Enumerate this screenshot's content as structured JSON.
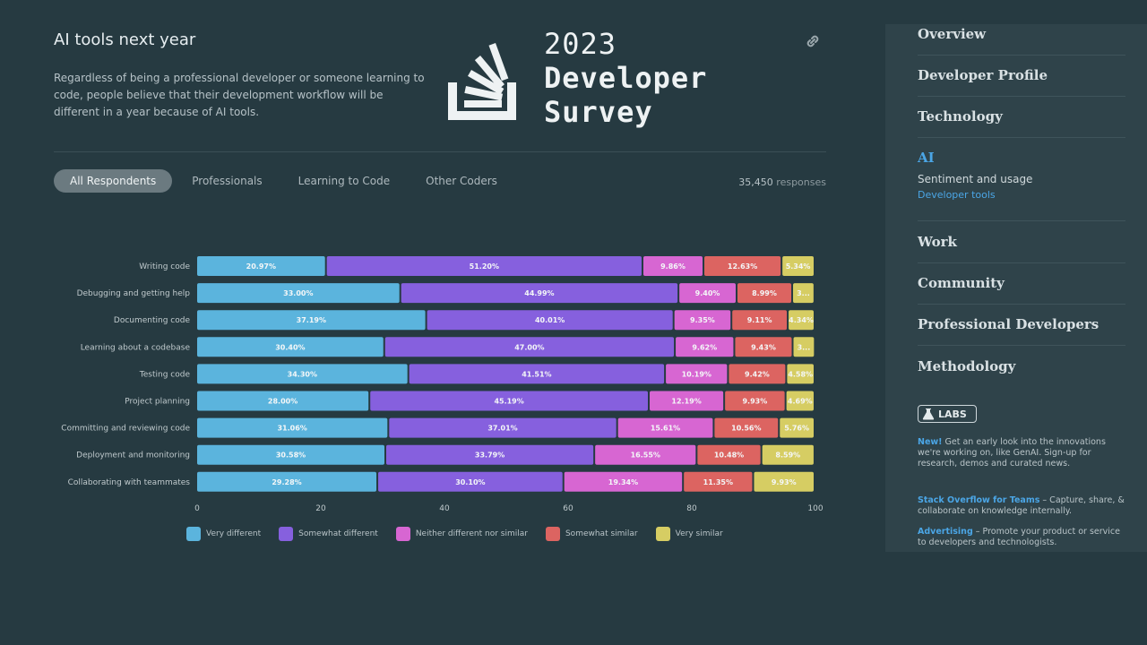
{
  "header": {
    "title": "AI tools next year",
    "description": "Regardless of being a professional developer or someone learning to code, people believe that their development workflow will be different in a year because of AI tools."
  },
  "logo": {
    "year": "2023",
    "line1": "Developer",
    "line2": "Survey"
  },
  "tabs": [
    {
      "label": "All Respondents",
      "active": true
    },
    {
      "label": "Professionals",
      "active": false
    },
    {
      "label": "Learning to Code",
      "active": false
    },
    {
      "label": "Other Coders",
      "active": false
    }
  ],
  "responses": {
    "count": "35,450",
    "label": "responses"
  },
  "colors": {
    "very_different": "#5bb4dd",
    "somewhat_different": "#8660de",
    "neither": "#d766d2",
    "somewhat_similar": "#dc6461",
    "very_similar": "#d6cd63"
  },
  "chart_data": {
    "type": "bar",
    "orientation": "horizontal",
    "stacked": true,
    "xlim": [
      0,
      100
    ],
    "xticks": [
      "0",
      "20",
      "40",
      "60",
      "80",
      "100"
    ],
    "categories": [
      "Writing code",
      "Debugging and getting help",
      "Documenting code",
      "Learning about a codebase",
      "Testing code",
      "Project planning",
      "Committing and reviewing code",
      "Deployment and monitoring",
      "Collaborating with teammates"
    ],
    "series": [
      {
        "name": "Very different",
        "color": "#5bb4dd",
        "values": [
          20.97,
          33.0,
          37.19,
          30.4,
          34.3,
          28.0,
          31.06,
          30.58,
          29.28
        ],
        "labels": [
          "20.97%",
          "33.00%",
          "37.19%",
          "30.40%",
          "34.30%",
          "28.00%",
          "31.06%",
          "30.58%",
          "29.28%"
        ]
      },
      {
        "name": "Somewhat different",
        "color": "#8660de",
        "values": [
          51.2,
          44.99,
          40.01,
          47.0,
          41.51,
          45.19,
          37.01,
          33.79,
          30.1
        ],
        "labels": [
          "51.20%",
          "44.99%",
          "40.01%",
          "47.00%",
          "41.51%",
          "45.19%",
          "37.01%",
          "33.79%",
          "30.10%"
        ]
      },
      {
        "name": "Neither different nor similar",
        "color": "#d766d2",
        "values": [
          9.86,
          9.4,
          9.35,
          9.62,
          10.19,
          12.19,
          15.61,
          16.55,
          19.34
        ],
        "labels": [
          "9.86%",
          "9.40%",
          "9.35%",
          "9.62%",
          "10.19%",
          "12.19%",
          "15.61%",
          "16.55%",
          "19.34%"
        ]
      },
      {
        "name": "Somewhat similar",
        "color": "#dc6461",
        "values": [
          12.63,
          8.99,
          9.11,
          9.43,
          9.42,
          9.93,
          10.56,
          10.48,
          11.35
        ],
        "labels": [
          "12.63%",
          "8.99%",
          "9.11%",
          "9.43%",
          "9.42%",
          "9.93%",
          "10.56%",
          "10.48%",
          "11.35%"
        ]
      },
      {
        "name": "Very similar",
        "color": "#d6cd63",
        "values": [
          5.34,
          3.6,
          4.34,
          3.6,
          4.58,
          4.69,
          5.76,
          8.59,
          9.93
        ],
        "labels": [
          "5.34%",
          "3...",
          "4.34%",
          "3...",
          "4.58%",
          "4.69%",
          "5.76%",
          "8.59%",
          "9.93%"
        ]
      }
    ]
  },
  "sidebar": {
    "items": [
      {
        "label": "Overview"
      },
      {
        "label": "Developer Profile"
      },
      {
        "label": "Technology"
      },
      {
        "label": "AI",
        "sub": "Sentiment and usage",
        "sub2": "Developer tools"
      },
      {
        "label": "Work"
      },
      {
        "label": "Community"
      },
      {
        "label": "Professional Developers"
      },
      {
        "label": "Methodology"
      }
    ],
    "labs_label": "LABS",
    "promo_labs_highlight": "New!",
    "promo_labs_text": " Get an early look into the innovations we're working on, like GenAI. Sign-up for research, demos and curated news.",
    "promo_teams_highlight": "Stack Overflow for Teams",
    "promo_teams_text": " – Capture, share, & collaborate on knowledge internally.",
    "promo_ads_highlight": "Advertising",
    "promo_ads_text": " – Promote your product or service to developers and technologists."
  }
}
